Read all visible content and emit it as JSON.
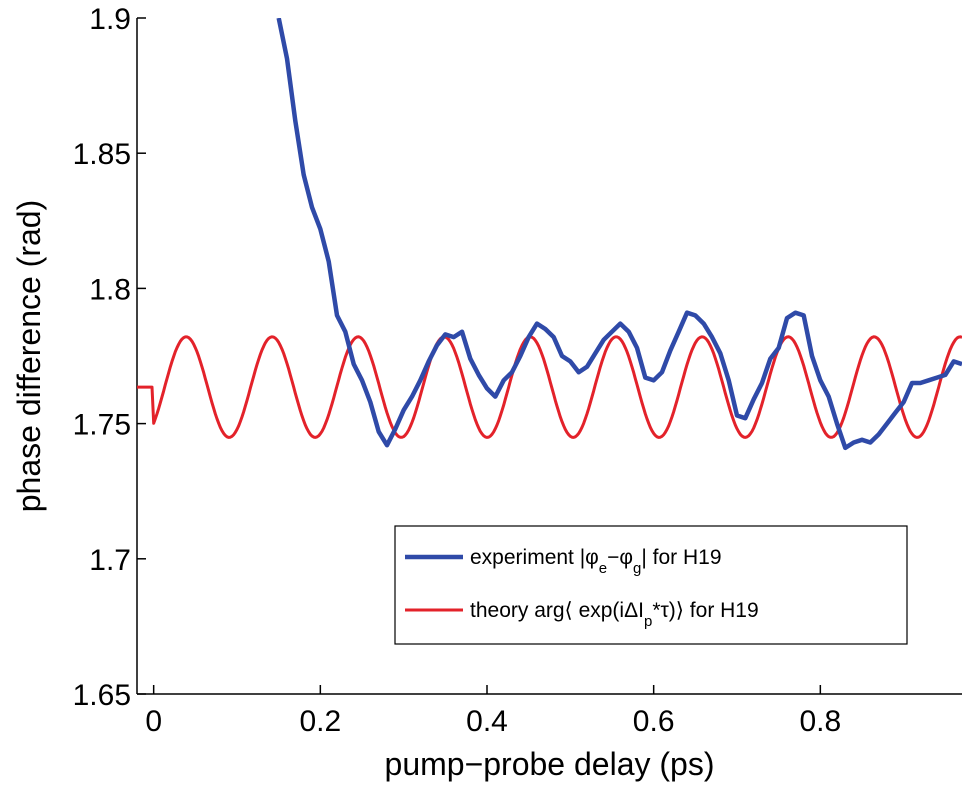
{
  "chart_data": {
    "type": "line",
    "title": "",
    "xlabel": "pump−probe delay (ps)",
    "ylabel": "phase difference (rad)",
    "xlim": [
      -0.02,
      0.97
    ],
    "ylim": [
      1.65,
      1.9
    ],
    "xticks": [
      0,
      0.2,
      0.4,
      0.6,
      0.8
    ],
    "xtick_labels": [
      "0",
      "0.2",
      "0.4",
      "0.6",
      "0.8"
    ],
    "yticks": [
      1.65,
      1.7,
      1.75,
      1.8,
      1.85,
      1.9
    ],
    "ytick_labels": [
      "1.65",
      "1.7",
      "1.75",
      "1.8",
      "1.85",
      "1.9"
    ],
    "grid": false,
    "legend_position": "lower-right",
    "series": [
      {
        "name": "experiment",
        "legend_parts": {
          "prefix": "experiment |φ",
          "sub1": "e",
          "mid": "−φ",
          "sub2": "g",
          "suffix": "| for H19"
        },
        "color": "#2f4aa8",
        "x": [
          0.15,
          0.16,
          0.17,
          0.18,
          0.19,
          0.2,
          0.21,
          0.22,
          0.23,
          0.24,
          0.25,
          0.26,
          0.27,
          0.28,
          0.29,
          0.3,
          0.31,
          0.32,
          0.33,
          0.34,
          0.35,
          0.36,
          0.37,
          0.38,
          0.39,
          0.4,
          0.41,
          0.42,
          0.43,
          0.44,
          0.45,
          0.46,
          0.47,
          0.48,
          0.49,
          0.5,
          0.51,
          0.52,
          0.53,
          0.54,
          0.55,
          0.56,
          0.57,
          0.58,
          0.59,
          0.6,
          0.61,
          0.62,
          0.63,
          0.64,
          0.65,
          0.66,
          0.67,
          0.68,
          0.69,
          0.7,
          0.71,
          0.72,
          0.73,
          0.74,
          0.75,
          0.76,
          0.77,
          0.78,
          0.79,
          0.8,
          0.81,
          0.82,
          0.83,
          0.84,
          0.85,
          0.86,
          0.87,
          0.88,
          0.89,
          0.9,
          0.91,
          0.92,
          0.93,
          0.94,
          0.95,
          0.96,
          0.97
        ],
        "y": [
          1.9,
          1.885,
          1.862,
          1.842,
          1.83,
          1.822,
          1.81,
          1.79,
          1.784,
          1.772,
          1.766,
          1.758,
          1.747,
          1.742,
          1.748,
          1.755,
          1.76,
          1.766,
          1.773,
          1.779,
          1.783,
          1.782,
          1.784,
          1.774,
          1.768,
          1.763,
          1.76,
          1.766,
          1.769,
          1.775,
          1.782,
          1.787,
          1.785,
          1.782,
          1.775,
          1.773,
          1.769,
          1.771,
          1.776,
          1.781,
          1.784,
          1.787,
          1.784,
          1.778,
          1.767,
          1.766,
          1.769,
          1.777,
          1.784,
          1.791,
          1.79,
          1.787,
          1.782,
          1.776,
          1.766,
          1.753,
          1.752,
          1.759,
          1.765,
          1.774,
          1.778,
          1.789,
          1.791,
          1.79,
          1.775,
          1.766,
          1.76,
          1.75,
          1.741,
          1.743,
          1.744,
          1.743,
          1.746,
          1.75,
          1.754,
          1.758,
          1.765,
          1.765,
          1.766,
          1.767,
          1.768,
          1.773,
          1.772
        ]
      },
      {
        "name": "theory",
        "legend_parts": {
          "prefix": "theory arg⟨ exp(iΔI",
          "sub1": "p",
          "mid": "*τ)⟩ for H19"
        },
        "color": "#e3222a",
        "function": {
          "baseline": 1.7635,
          "amplitude": 0.0186,
          "period_ps": 0.1032,
          "peak_at_ps": 0.039,
          "start_ps": -0.02,
          "flat_until_ps": 0.0
        }
      }
    ]
  }
}
